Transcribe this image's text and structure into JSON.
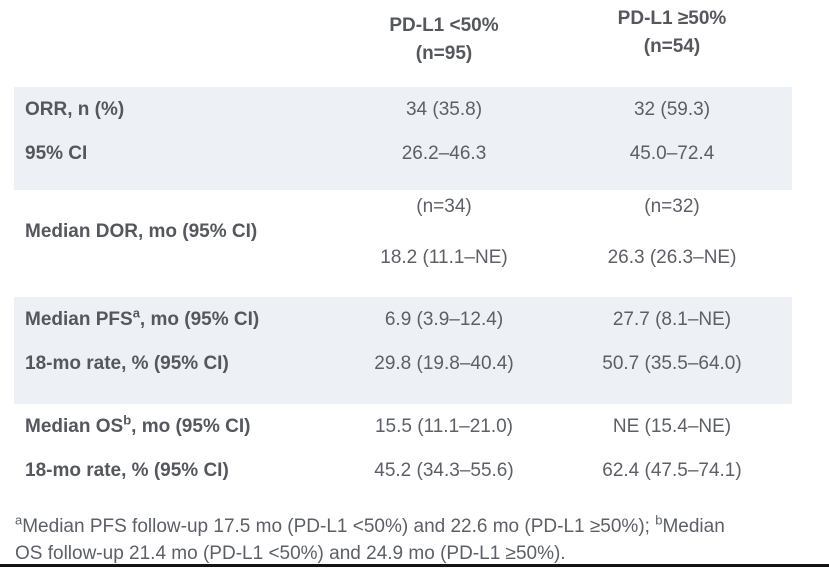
{
  "header": {
    "col1": {
      "title": "PD-L1 <50%",
      "n": "(n=95)"
    },
    "col2": {
      "title": "PD-L1 ≥50%",
      "n": "(n=54)"
    }
  },
  "rows": [
    {
      "pre": "ORR, n (%)",
      "sup": "",
      "post": "",
      "v1": "34 (35.8)",
      "v2": "32 (59.3)"
    },
    {
      "pre": "95% CI",
      "sup": "",
      "post": "",
      "v1": "26.2–46.3",
      "v2": "45.0–72.4"
    },
    {
      "pre": "Median PFS",
      "sup": "a",
      "post": ", mo (95% CI)",
      "v1": "6.9 (3.9–12.4)",
      "v2": "27.7 (8.1–NE)"
    },
    {
      "pre": "18-mo rate, % (95% CI)",
      "sup": "",
      "post": "",
      "v1": "29.8 (19.8–40.4)",
      "v2": "50.7 (35.5–64.0)"
    },
    {
      "pre": "Median OS",
      "sup": "b",
      "post": ", mo (95% CI)",
      "v1": "15.5 (11.1–21.0)",
      "v2": "NE (15.4–NE)"
    },
    {
      "pre": "18-mo rate, % (95% CI)",
      "sup": "",
      "post": "",
      "v1": "45.2 (34.3–55.6)",
      "v2": "62.4 (47.5–74.1)"
    }
  ],
  "dor": {
    "label": "Median DOR, mo (95% CI)",
    "v1_n": "(n=34)",
    "v1": "18.2 (11.1–NE)",
    "v2_n": "(n=32)",
    "v2": "26.3 (26.3–NE)"
  },
  "footnote": {
    "sup_a": "a",
    "text_a": "Median PFS follow-up 17.5 mo (PD-L1 <50%) and 22.6 mo (PD-L1 ≥50%); ",
    "sup_b": "b",
    "text_b": "Median OS follow-up 21.4 mo (PD-L1 <50%) and 24.9 mo (PD-L1 ≥50%)."
  },
  "colors": {
    "band": "#edf1f6",
    "text": "#5c6066",
    "text_bold": "#54575c",
    "rule": "#141414"
  }
}
